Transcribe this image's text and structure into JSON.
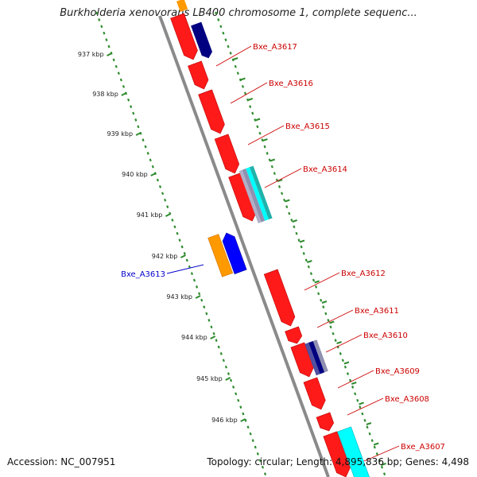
{
  "title": "Burkholderia xenovorans LB400 chromosome 1, complete sequenc...",
  "accession": "Accession: NC_007951",
  "summary": "Topology: circular; Length: 4,895,836 bp; Genes: 4,498",
  "colors": {
    "red": "#ff1a1a",
    "blue": "#0000ff",
    "navy": "#000080",
    "orange": "#ff9900",
    "cyan": "#00ffff",
    "teal": "#20b2aa",
    "gray_purple": "#9090b0",
    "label_red": "#cc0000",
    "label_blue": "#0000cc",
    "tick_green": "#2e8b2e",
    "backbone": "#808080"
  },
  "ticks": [
    "937 kbp",
    "938 kbp",
    "939 kbp",
    "940 kbp",
    "941 kbp",
    "942 kbp",
    "943 kbp",
    "944 kbp",
    "945 kbp",
    "946 kbp"
  ],
  "gene_labels": [
    {
      "name": "Bxe_A3617",
      "strand": "forward"
    },
    {
      "name": "Bxe_A3616",
      "strand": "forward"
    },
    {
      "name": "Bxe_A3615",
      "strand": "forward"
    },
    {
      "name": "Bxe_A3614",
      "strand": "forward"
    },
    {
      "name": "Bxe_A3613",
      "strand": "reverse"
    },
    {
      "name": "Bxe_A3612",
      "strand": "forward"
    },
    {
      "name": "Bxe_A3611",
      "strand": "forward"
    },
    {
      "name": "Bxe_A3610",
      "strand": "forward"
    },
    {
      "name": "Bxe_A3609",
      "strand": "forward"
    },
    {
      "name": "Bxe_A3608",
      "strand": "forward"
    },
    {
      "name": "Bxe_A3607",
      "strand": "forward"
    }
  ]
}
